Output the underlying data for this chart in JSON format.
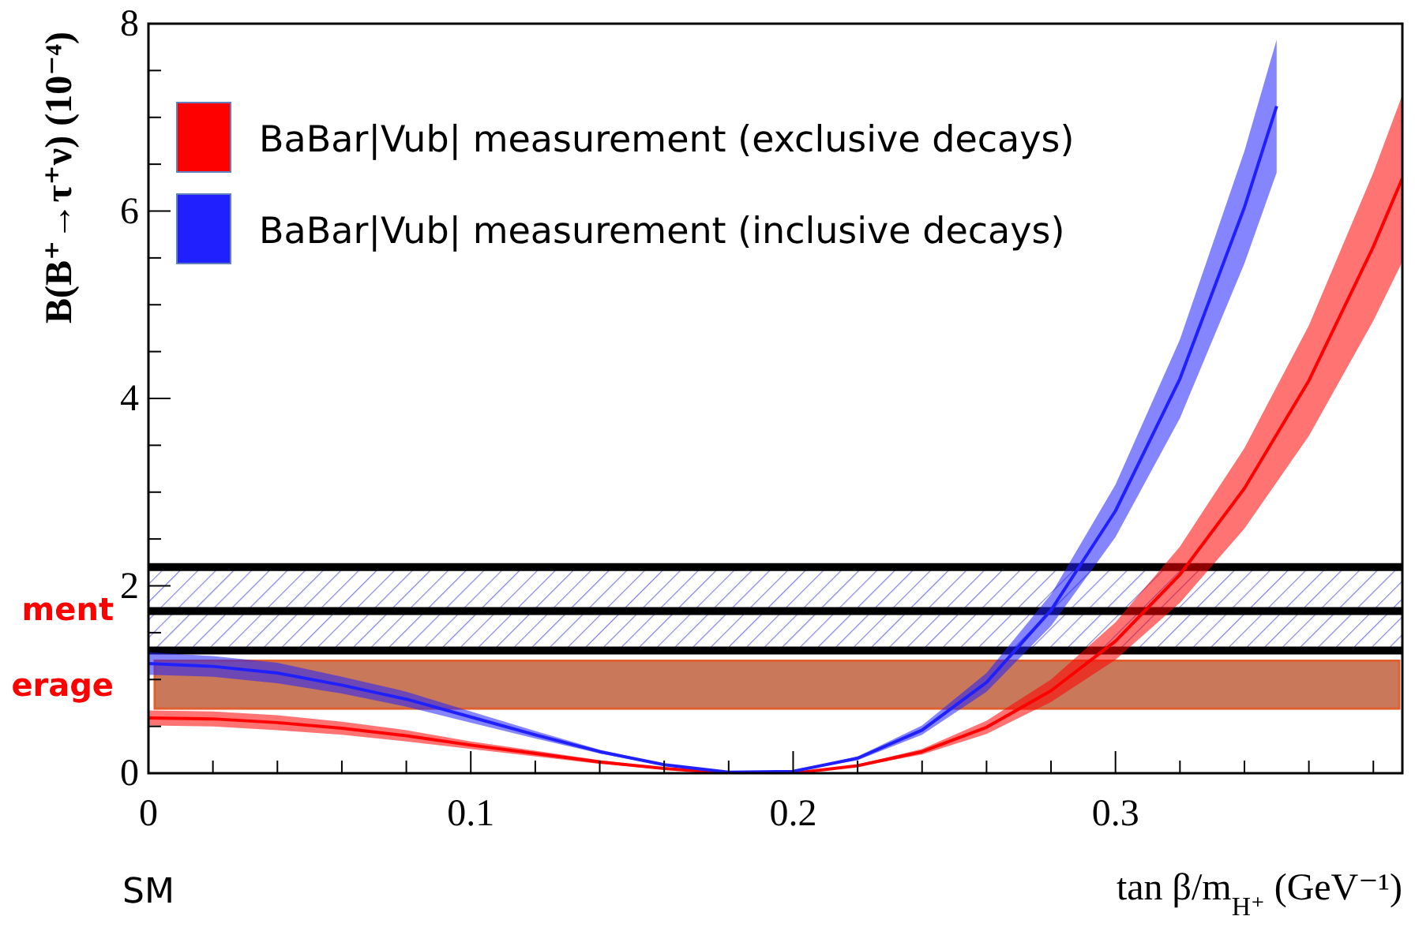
{
  "chart_data": {
    "type": "line",
    "xlabel": "tan β/m$_{H⁺}$ (GeV⁻¹)",
    "ylabel": "B(B⁺→τ⁺ν) (10⁻⁴)",
    "xlim": [
      0,
      0.389
    ],
    "ylim": [
      0,
      8
    ],
    "xticks": [
      0,
      {
        "value": 0.02,
        "label": null
      },
      {
        "value": 0.04,
        "label": null
      },
      {
        "value": 0.06,
        "label": null
      },
      {
        "value": 0.08,
        "label": null
      },
      0.1,
      {
        "value": 0.12,
        "label": null
      },
      {
        "value": 0.14,
        "label": null
      },
      {
        "value": 0.16,
        "label": null
      },
      {
        "value": 0.18,
        "label": null
      },
      0.2,
      {
        "value": 0.22,
        "label": null
      },
      {
        "value": 0.24,
        "label": null
      },
      {
        "value": 0.26,
        "label": null
      },
      {
        "value": 0.28,
        "label": null
      },
      0.3,
      {
        "value": 0.32,
        "label": null
      },
      {
        "value": 0.34,
        "label": null
      },
      {
        "value": 0.36,
        "label": null
      },
      {
        "value": 0.38,
        "label": null
      }
    ],
    "yticks": [
      0,
      {
        "value": 0.5,
        "label": null
      },
      {
        "value": 1,
        "label": null
      },
      {
        "value": 1.5,
        "label": null
      },
      2,
      {
        "value": 2.5,
        "label": null
      },
      {
        "value": 3,
        "label": null
      },
      {
        "value": 3.5,
        "label": null
      },
      4,
      {
        "value": 4.5,
        "label": null
      },
      {
        "value": 5,
        "label": null
      },
      {
        "value": 5.5,
        "label": null
      },
      6,
      {
        "value": 6.5,
        "label": null
      },
      {
        "value": 7,
        "label": null
      },
      {
        "value": 7.5,
        "label": null
      },
      8
    ],
    "legend": "top left",
    "grid": false,
    "marker": "none",
    "line_style": "solid",
    "series": [
      {
        "name": "BaBar|Vub| measurement (exclusive decays)",
        "color": "#ff0000",
        "x": [
          0,
          0.02,
          0.04,
          0.06,
          0.08,
          0.1,
          0.12,
          0.14,
          0.16,
          0.18,
          0.19,
          0.2,
          0.22,
          0.24,
          0.26,
          0.28,
          0.3,
          0.32,
          0.34,
          0.36,
          0.38,
          0.389
        ],
        "values": [
          0.59,
          0.58,
          0.54,
          0.48,
          0.4,
          0.3,
          0.21,
          0.12,
          0.05,
          0,
          0,
          0,
          0.08,
          0.23,
          0.49,
          0.88,
          1.41,
          2.12,
          3.04,
          4.19,
          5.62,
          6.35
        ],
        "lower": [
          0.51,
          0.5,
          0.46,
          0.41,
          0.34,
          0.26,
          0.18,
          0.1,
          0.04,
          0,
          0,
          0,
          0.07,
          0.2,
          0.42,
          0.76,
          1.21,
          1.82,
          2.61,
          3.6,
          4.83,
          5.46
        ],
        "upper": [
          0.67,
          0.66,
          0.62,
          0.55,
          0.46,
          0.34,
          0.24,
          0.14,
          0.05,
          0,
          0,
          0,
          0.09,
          0.26,
          0.56,
          1,
          1.61,
          2.42,
          3.47,
          4.78,
          6.41,
          7.24
        ]
      },
      {
        "name": "BaBar|Vub| measurement (inclusive decays)",
        "color": "#2020ff",
        "x": [
          0,
          0.02,
          0.04,
          0.06,
          0.08,
          0.1,
          0.12,
          0.14,
          0.16,
          0.18,
          0.2,
          0.22,
          0.24,
          0.26,
          0.28,
          0.3,
          0.32,
          0.34,
          0.35
        ],
        "values": [
          1.17,
          1.14,
          1.07,
          0.94,
          0.79,
          0.6,
          0.41,
          0.23,
          0.09,
          0.01,
          0.02,
          0.16,
          0.46,
          0.97,
          1.74,
          2.8,
          4.21,
          6.04,
          7.12
        ],
        "lower": [
          1.05,
          1.03,
          0.96,
          0.85,
          0.71,
          0.54,
          0.37,
          0.21,
          0.08,
          0.01,
          0.02,
          0.14,
          0.41,
          0.87,
          1.57,
          2.52,
          3.79,
          5.44,
          6.41
        ],
        "upper": [
          1.29,
          1.25,
          1.18,
          1.03,
          0.87,
          0.66,
          0.45,
          0.25,
          0.1,
          0.01,
          0.02,
          0.18,
          0.51,
          1.07,
          1.91,
          3.08,
          4.63,
          6.64,
          7.83
        ]
      }
    ],
    "ref_lines": [
      {
        "axis": "y",
        "value": 2.2,
        "color": "#000000"
      },
      {
        "axis": "y",
        "value": 1.73,
        "color": "#000000"
      },
      {
        "axis": "y",
        "value": 1.31,
        "color": "#000000"
      }
    ],
    "bands": [
      {
        "axis": "y",
        "from": 1.31,
        "to": 2.2,
        "label": "ment",
        "color": "#8080e0"
      },
      {
        "axis": "y",
        "from": 0.69,
        "to": 1.2,
        "label": "erage",
        "color": "#c0603c"
      }
    ],
    "annotations": [
      "SM"
    ]
  }
}
